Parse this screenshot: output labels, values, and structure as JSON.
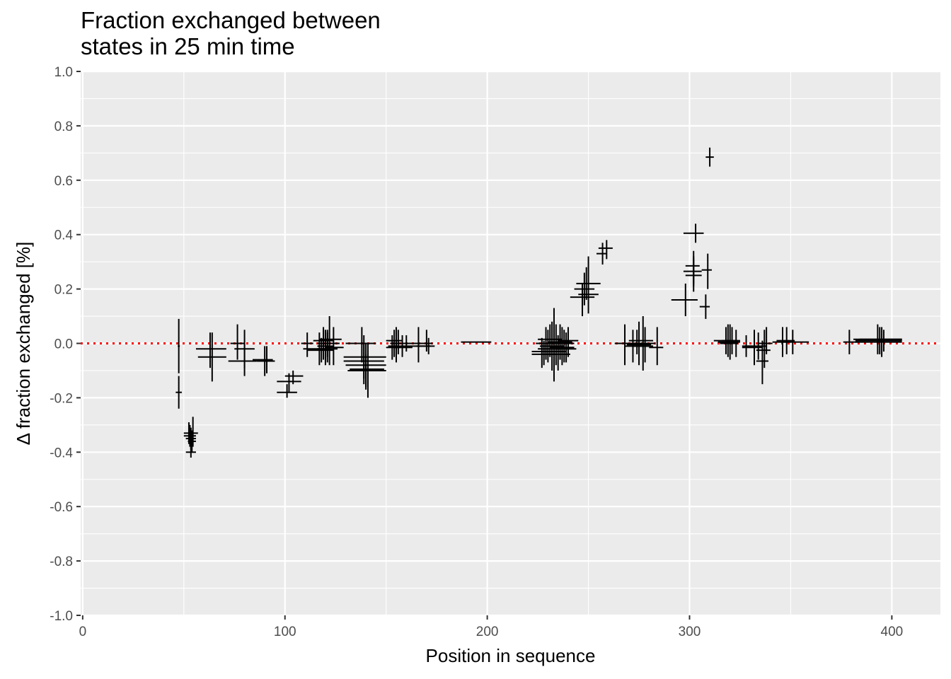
{
  "chart_data": {
    "type": "scatter",
    "title": "Fraction exchanged between\nstates in 25 min time",
    "xlabel": "Position in sequence",
    "ylabel": "Δ fraction exchanged [%]",
    "xlim": [
      -1,
      424
    ],
    "ylim": [
      -1.0,
      1.0
    ],
    "x_ticks": [
      0,
      100,
      200,
      300,
      400
    ],
    "y_ticks": [
      -1.0,
      -0.8,
      -0.6,
      -0.4,
      -0.2,
      0.0,
      0.2,
      0.4,
      0.6,
      0.8,
      1.0
    ],
    "y_tick_labels": [
      "-1.0",
      "-0.8",
      "-0.6",
      "-0.4",
      "-0.2",
      "0.0",
      "0.2",
      "0.4",
      "0.6",
      "0.8",
      "1.0"
    ],
    "grid": true,
    "reference_line": {
      "y": 0.0,
      "style": "dotted",
      "color": "#ff0000"
    },
    "colors": {
      "panel": "#ebebeb",
      "grid": "#ffffff",
      "marks": "#000000"
    },
    "series": [
      {
        "points": [
          {
            "x": 47.5,
            "xmin": 47,
            "xmax": 48,
            "y": -0.01,
            "ymin": -0.11,
            "ymax": 0.09
          },
          {
            "x": 47.5,
            "xmin": 46,
            "xmax": 49,
            "y": -0.18,
            "ymin": -0.24,
            "ymax": -0.12
          },
          {
            "x": 52.5,
            "xmin": 50,
            "xmax": 55,
            "y": -0.33,
            "ymin": -0.37,
            "ymax": -0.29
          },
          {
            "x": 53,
            "xmin": 50,
            "xmax": 56,
            "y": -0.34,
            "ymin": -0.38,
            "ymax": -0.3
          },
          {
            "x": 53.5,
            "xmin": 51,
            "xmax": 56,
            "y": -0.35,
            "ymin": -0.39,
            "ymax": -0.31
          },
          {
            "x": 54,
            "xmin": 52,
            "xmax": 56,
            "y": -0.36,
            "ymin": -0.4,
            "ymax": -0.32
          },
          {
            "x": 54.5,
            "xmin": 52,
            "xmax": 57,
            "y": -0.33,
            "ymin": -0.38,
            "ymax": -0.27
          },
          {
            "x": 53.5,
            "xmin": 51,
            "xmax": 56,
            "y": -0.4,
            "ymin": -0.42,
            "ymax": -0.37
          },
          {
            "x": 63,
            "xmin": 56,
            "xmax": 71,
            "y": -0.02,
            "ymin": -0.09,
            "ymax": 0.04
          },
          {
            "x": 64,
            "xmin": 57,
            "xmax": 71,
            "y": -0.05,
            "ymin": -0.14,
            "ymax": 0.04
          },
          {
            "x": 76.5,
            "xmin": 73,
            "xmax": 80,
            "y": 0.0,
            "ymin": -0.06,
            "ymax": 0.07
          },
          {
            "x": 80,
            "xmin": 72,
            "xmax": 86,
            "y": -0.065,
            "ymin": -0.12,
            "ymax": 0.0
          },
          {
            "x": 80,
            "xmin": 75,
            "xmax": 85,
            "y": -0.02,
            "ymin": -0.09,
            "ymax": 0.05
          },
          {
            "x": 90,
            "xmin": 84,
            "xmax": 94,
            "y": -0.06,
            "ymin": -0.12,
            "ymax": -0.01
          },
          {
            "x": 91,
            "xmin": 86,
            "xmax": 95,
            "y": -0.065,
            "ymin": -0.11,
            "ymax": -0.01
          },
          {
            "x": 101,
            "xmin": 96,
            "xmax": 106,
            "y": -0.18,
            "ymin": -0.2,
            "ymax": -0.15
          },
          {
            "x": 102,
            "xmin": 96,
            "xmax": 108,
            "y": -0.14,
            "ymin": -0.18,
            "ymax": -0.11
          },
          {
            "x": 104,
            "xmin": 100,
            "xmax": 109,
            "y": -0.12,
            "ymin": -0.15,
            "ymax": -0.1
          },
          {
            "x": 111,
            "xmin": 108,
            "xmax": 114,
            "y": 0.0,
            "ymin": -0.05,
            "ymax": 0.04
          },
          {
            "x": 117,
            "xmin": 109,
            "xmax": 123,
            "y": -0.02,
            "ymin": -0.08,
            "ymax": 0.04
          },
          {
            "x": 118,
            "xmin": 111,
            "xmax": 124,
            "y": -0.025,
            "ymin": -0.07,
            "ymax": 0.02
          },
          {
            "x": 119,
            "xmin": 114,
            "xmax": 124,
            "y": 0.01,
            "ymin": -0.06,
            "ymax": 0.06
          },
          {
            "x": 120,
            "xmin": 116,
            "xmax": 124,
            "y": -0.01,
            "ymin": -0.08,
            "ymax": 0.05
          },
          {
            "x": 121,
            "xmin": 116,
            "xmax": 126,
            "y": -0.02,
            "ymin": -0.07,
            "ymax": 0.04
          },
          {
            "x": 121,
            "xmin": 116,
            "xmax": 127,
            "y": 0.0,
            "ymin": -0.05,
            "ymax": 0.05
          },
          {
            "x": 122,
            "xmin": 117,
            "xmax": 128,
            "y": 0.015,
            "ymin": -0.08,
            "ymax": 0.1
          },
          {
            "x": 124,
            "xmin": 120,
            "xmax": 129,
            "y": -0.015,
            "ymin": -0.08,
            "ymax": 0.06
          },
          {
            "x": 138,
            "xmin": 130,
            "xmax": 145,
            "y": 0.0,
            "ymin": -0.07,
            "ymax": 0.06
          },
          {
            "x": 139,
            "xmin": 129,
            "xmax": 150,
            "y": -0.05,
            "ymin": -0.13,
            "ymax": 0.03
          },
          {
            "x": 139,
            "xmin": 129,
            "xmax": 149,
            "y": -0.065,
            "ymin": -0.15,
            "ymax": 0.0
          },
          {
            "x": 140,
            "xmin": 130,
            "xmax": 150,
            "y": -0.08,
            "ymin": -0.17,
            "ymax": 0.0
          },
          {
            "x": 141,
            "xmin": 132,
            "xmax": 149,
            "y": -0.095,
            "ymin": -0.2,
            "ymax": 0.0
          },
          {
            "x": 140,
            "xmin": 131,
            "xmax": 150,
            "y": -0.1,
            "ymin": -0.16,
            "ymax": -0.04
          },
          {
            "x": 153,
            "xmin": 150,
            "xmax": 157,
            "y": -0.015,
            "ymin": -0.06,
            "ymax": 0.03
          },
          {
            "x": 154,
            "xmin": 150,
            "xmax": 158,
            "y": 0.01,
            "ymin": -0.05,
            "ymax": 0.05
          },
          {
            "x": 155,
            "xmin": 151,
            "xmax": 159,
            "y": -0.01,
            "ymin": -0.07,
            "ymax": 0.06
          },
          {
            "x": 156,
            "xmin": 152,
            "xmax": 160,
            "y": 0.0,
            "ymin": -0.04,
            "ymax": 0.05
          },
          {
            "x": 158,
            "xmin": 154,
            "xmax": 163,
            "y": -0.015,
            "ymin": -0.05,
            "ymax": 0.03
          },
          {
            "x": 160,
            "xmin": 155,
            "xmax": 165,
            "y": 0.0,
            "ymin": -0.03,
            "ymax": 0.03
          },
          {
            "x": 166,
            "xmin": 159,
            "xmax": 172,
            "y": -0.01,
            "ymin": -0.07,
            "ymax": 0.06
          },
          {
            "x": 170,
            "xmin": 164,
            "xmax": 173,
            "y": 0.0,
            "ymin": -0.03,
            "ymax": 0.05
          },
          {
            "x": 171,
            "xmin": 165,
            "xmax": 174,
            "y": -0.01,
            "ymin": -0.04,
            "ymax": 0.02
          },
          {
            "x": 195,
            "xmin": 187,
            "xmax": 202,
            "y": 0.005,
            "ymin": 0.005,
            "ymax": 0.005
          },
          {
            "x": 227,
            "xmin": 222,
            "xmax": 232,
            "y": -0.03,
            "ymin": -0.09,
            "ymax": 0.02
          },
          {
            "x": 228,
            "xmin": 222,
            "xmax": 234,
            "y": -0.04,
            "ymin": -0.08,
            "ymax": 0.01
          },
          {
            "x": 229,
            "xmin": 224,
            "xmax": 234,
            "y": 0.0,
            "ymin": -0.06,
            "ymax": 0.06
          },
          {
            "x": 230,
            "xmin": 225,
            "xmax": 236,
            "y": -0.02,
            "ymin": -0.07,
            "ymax": 0.05
          },
          {
            "x": 231,
            "xmin": 225,
            "xmax": 237,
            "y": 0.015,
            "ymin": -0.05,
            "ymax": 0.07
          },
          {
            "x": 232,
            "xmin": 226,
            "xmax": 238,
            "y": -0.01,
            "ymin": -0.1,
            "ymax": 0.08
          },
          {
            "x": 233,
            "xmin": 227,
            "xmax": 239,
            "y": -0.03,
            "ymin": -0.14,
            "ymax": 0.13
          },
          {
            "x": 234,
            "xmin": 228,
            "xmax": 240,
            "y": 0.0,
            "ymin": -0.08,
            "ymax": 0.07
          },
          {
            "x": 235,
            "xmin": 229,
            "xmax": 241,
            "y": -0.04,
            "ymin": -0.1,
            "ymax": 0.03
          },
          {
            "x": 236,
            "xmin": 230,
            "xmax": 242,
            "y": 0.005,
            "ymin": -0.06,
            "ymax": 0.07
          },
          {
            "x": 237,
            "xmin": 231,
            "xmax": 243,
            "y": -0.015,
            "ymin": -0.08,
            "ymax": 0.06
          },
          {
            "x": 238,
            "xmin": 232,
            "xmax": 243,
            "y": 0.0,
            "ymin": -0.07,
            "ymax": 0.05
          },
          {
            "x": 239,
            "xmin": 234,
            "xmax": 244,
            "y": -0.02,
            "ymin": -0.07,
            "ymax": 0.04
          },
          {
            "x": 240,
            "xmin": 235,
            "xmax": 245,
            "y": 0.01,
            "ymin": -0.05,
            "ymax": 0.06
          },
          {
            "x": 247,
            "xmin": 241,
            "xmax": 253,
            "y": 0.17,
            "ymin": 0.1,
            "ymax": 0.22
          },
          {
            "x": 248,
            "xmin": 243,
            "xmax": 253,
            "y": 0.2,
            "ymin": 0.14,
            "ymax": 0.26
          },
          {
            "x": 249,
            "xmin": 244,
            "xmax": 256,
            "y": 0.22,
            "ymin": 0.16,
            "ymax": 0.28
          },
          {
            "x": 250,
            "xmin": 245,
            "xmax": 255,
            "y": 0.18,
            "ymin": 0.11,
            "ymax": 0.32
          },
          {
            "x": 257,
            "xmin": 254,
            "xmax": 259,
            "y": 0.33,
            "ymin": 0.29,
            "ymax": 0.37
          },
          {
            "x": 259,
            "xmin": 255,
            "xmax": 262,
            "y": 0.35,
            "ymin": 0.31,
            "ymax": 0.38
          },
          {
            "x": 268,
            "xmin": 263,
            "xmax": 272,
            "y": 0.0,
            "ymin": -0.08,
            "ymax": 0.07
          },
          {
            "x": 272,
            "xmin": 268,
            "xmax": 280,
            "y": -0.01,
            "ymin": -0.07,
            "ymax": 0.05
          },
          {
            "x": 274,
            "xmin": 270,
            "xmax": 282,
            "y": 0.01,
            "ymin": -0.04,
            "ymax": 0.05
          },
          {
            "x": 275,
            "xmin": 269,
            "xmax": 281,
            "y": -0.005,
            "ymin": -0.08,
            "ymax": 0.08
          },
          {
            "x": 277,
            "xmin": 271,
            "xmax": 283,
            "y": 0.0,
            "ymin": -0.1,
            "ymax": 0.1
          },
          {
            "x": 278,
            "xmin": 272,
            "xmax": 282,
            "y": -0.01,
            "ymin": -0.07,
            "ymax": 0.06
          },
          {
            "x": 284,
            "xmin": 280,
            "xmax": 287,
            "y": -0.015,
            "ymin": -0.08,
            "ymax": 0.06
          },
          {
            "x": 298,
            "xmin": 291,
            "xmax": 304,
            "y": 0.16,
            "ymin": 0.1,
            "ymax": 0.22
          },
          {
            "x": 302,
            "xmin": 298,
            "xmax": 306,
            "y": 0.25,
            "ymin": 0.19,
            "ymax": 0.31
          },
          {
            "x": 302,
            "xmin": 298,
            "xmax": 305,
            "y": 0.285,
            "ymin": 0.22,
            "ymax": 0.34
          },
          {
            "x": 302,
            "xmin": 297,
            "xmax": 306,
            "y": 0.265,
            "ymin": 0.21,
            "ymax": 0.32
          },
          {
            "x": 303,
            "xmin": 297,
            "xmax": 307,
            "y": 0.405,
            "ymin": 0.37,
            "ymax": 0.44
          },
          {
            "x": 308,
            "xmin": 305,
            "xmax": 310,
            "y": 0.135,
            "ymin": 0.09,
            "ymax": 0.18
          },
          {
            "x": 309,
            "xmin": 306,
            "xmax": 311,
            "y": 0.27,
            "ymin": 0.2,
            "ymax": 0.33
          },
          {
            "x": 310,
            "xmin": 308,
            "xmax": 312,
            "y": 0.685,
            "ymin": 0.65,
            "ymax": 0.72
          },
          {
            "x": 318,
            "xmin": 312,
            "xmax": 323,
            "y": 0.01,
            "ymin": -0.04,
            "ymax": 0.06
          },
          {
            "x": 319,
            "xmin": 314,
            "xmax": 324,
            "y": 0.005,
            "ymin": -0.05,
            "ymax": 0.07
          },
          {
            "x": 320,
            "xmin": 315,
            "xmax": 324,
            "y": 0.0,
            "ymin": -0.06,
            "ymax": 0.07
          },
          {
            "x": 321,
            "xmin": 316,
            "xmax": 325,
            "y": 0.01,
            "ymin": -0.04,
            "ymax": 0.06
          },
          {
            "x": 323,
            "xmin": 318,
            "xmax": 325,
            "y": 0.005,
            "ymin": -0.05,
            "ymax": 0.05
          },
          {
            "x": 328,
            "xmin": 326,
            "xmax": 331,
            "y": -0.01,
            "ymin": -0.05,
            "ymax": 0.03
          },
          {
            "x": 332,
            "xmin": 326,
            "xmax": 336,
            "y": -0.015,
            "ymin": -0.08,
            "ymax": 0.05
          },
          {
            "x": 334,
            "xmin": 329,
            "xmax": 338,
            "y": -0.01,
            "ymin": -0.06,
            "ymax": 0.04
          },
          {
            "x": 337,
            "xmin": 333,
            "xmax": 340,
            "y": -0.025,
            "ymin": -0.09,
            "ymax": 0.05
          },
          {
            "x": 336,
            "xmin": 333,
            "xmax": 339,
            "y": -0.065,
            "ymin": -0.15,
            "ymax": 0.01
          },
          {
            "x": 338,
            "xmin": 334,
            "xmax": 341,
            "y": 0.0,
            "ymin": -0.04,
            "ymax": 0.06
          },
          {
            "x": 346,
            "xmin": 341,
            "xmax": 350,
            "y": 0.005,
            "ymin": -0.05,
            "ymax": 0.06
          },
          {
            "x": 348,
            "xmin": 343,
            "xmax": 352,
            "y": 0.01,
            "ymin": -0.04,
            "ymax": 0.06
          },
          {
            "x": 351,
            "xmin": 346,
            "xmax": 359,
            "y": 0.005,
            "ymin": -0.04,
            "ymax": 0.05
          },
          {
            "x": 379,
            "xmin": 376,
            "xmax": 383,
            "y": 0.005,
            "ymin": -0.04,
            "ymax": 0.05
          },
          {
            "x": 393,
            "xmin": 381,
            "xmax": 405,
            "y": 0.015,
            "ymin": -0.04,
            "ymax": 0.07
          },
          {
            "x": 394,
            "xmin": 382,
            "xmax": 405,
            "y": 0.01,
            "ymin": -0.04,
            "ymax": 0.06
          },
          {
            "x": 395,
            "xmin": 382,
            "xmax": 405,
            "y": 0.005,
            "ymin": -0.05,
            "ymax": 0.06
          },
          {
            "x": 396,
            "xmin": 384,
            "xmax": 405,
            "y": 0.015,
            "ymin": -0.03,
            "ymax": 0.05
          }
        ]
      }
    ]
  }
}
